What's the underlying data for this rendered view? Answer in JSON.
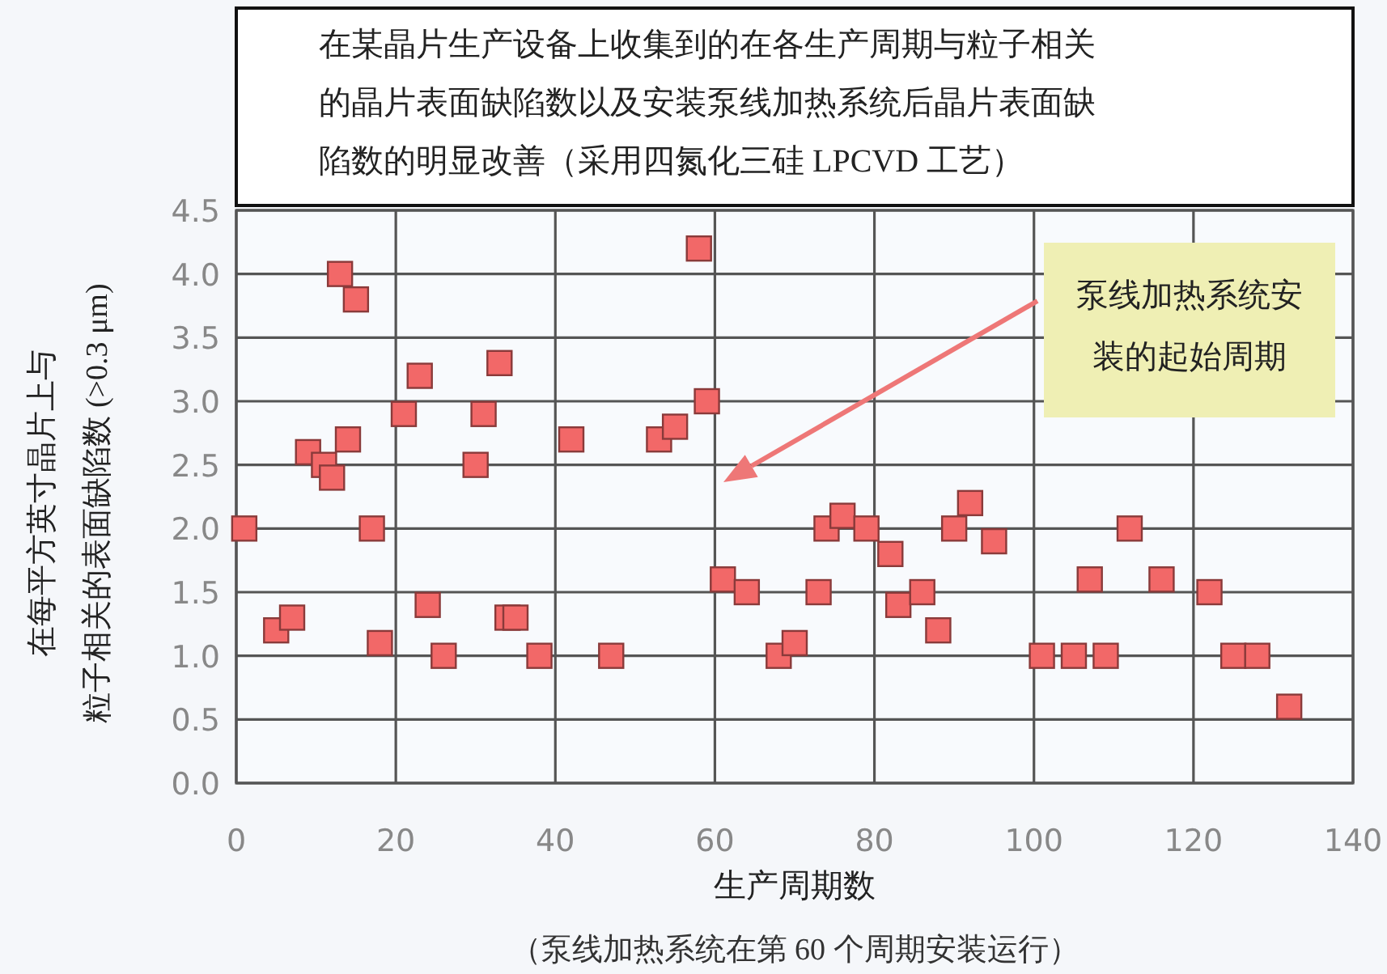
{
  "chart_data": {
    "type": "scatter",
    "title": "在某晶片生产设备上收集到的在各生产周期与粒子相关的晶片表面缺陷数以及安装泵线加热系统后晶片表面缺陷数的明显改善（采用四氮化三硅 LPCVD 工艺）",
    "xlabel": "生产周期数",
    "ylabel": "在每平方英寸晶片上与粒子相关的表面缺陷数 (>0.3 μm)",
    "annotations": [
      "泵线加热系统安装的起始周期",
      "（泵线加热系统在第 60 个周期安装运行）"
    ],
    "x": [
      1,
      5,
      7,
      9,
      11,
      12,
      13,
      14,
      15,
      17,
      18,
      21,
      23,
      24,
      26,
      30,
      31,
      33,
      34,
      35,
      38,
      42,
      47,
      53,
      55,
      58,
      59,
      61,
      64,
      68,
      70,
      73,
      74,
      76,
      79,
      82,
      83,
      86,
      88,
      90,
      92,
      95,
      101,
      105,
      107,
      109,
      112,
      116,
      122,
      125,
      128,
      132
    ],
    "values": [
      2.0,
      1.2,
      1.3,
      2.6,
      2.5,
      2.4,
      4.0,
      2.7,
      3.8,
      2.0,
      1.1,
      2.9,
      3.2,
      1.4,
      1.0,
      2.5,
      2.9,
      3.3,
      1.3,
      1.3,
      1.0,
      2.7,
      1.0,
      2.7,
      2.8,
      4.2,
      3.0,
      1.6,
      1.5,
      1.0,
      1.1,
      1.5,
      2.0,
      2.1,
      2.0,
      1.8,
      1.4,
      1.5,
      1.2,
      2.0,
      2.2,
      1.9,
      1.0,
      1.0,
      1.6,
      1.0,
      2.0,
      1.6,
      1.5,
      1.0,
      1.0,
      0.6
    ],
    "color": "#f26868",
    "marker": "square",
    "grid": true,
    "xlim": [
      0,
      140
    ],
    "xticks": [
      0,
      20,
      40,
      60,
      80,
      100,
      120,
      140
    ],
    "ylim": [
      0,
      4.5
    ],
    "yticks": [
      {
        "value": 0,
        "label": "0.0"
      },
      {
        "value": 0.5,
        "label": "0.5"
      },
      {
        "value": 1,
        "label": "1.0"
      },
      {
        "value": 1.5,
        "label": "1.5"
      },
      {
        "value": 2,
        "label": "2.0"
      },
      {
        "value": 2.5,
        "label": "2.5"
      },
      {
        "value": 3,
        "label": "3.0"
      },
      {
        "value": 3.5,
        "label": "3.5"
      },
      {
        "value": 4,
        "label": "4.0"
      },
      {
        "value": 4.5,
        "label": "4.5"
      }
    ]
  }
}
